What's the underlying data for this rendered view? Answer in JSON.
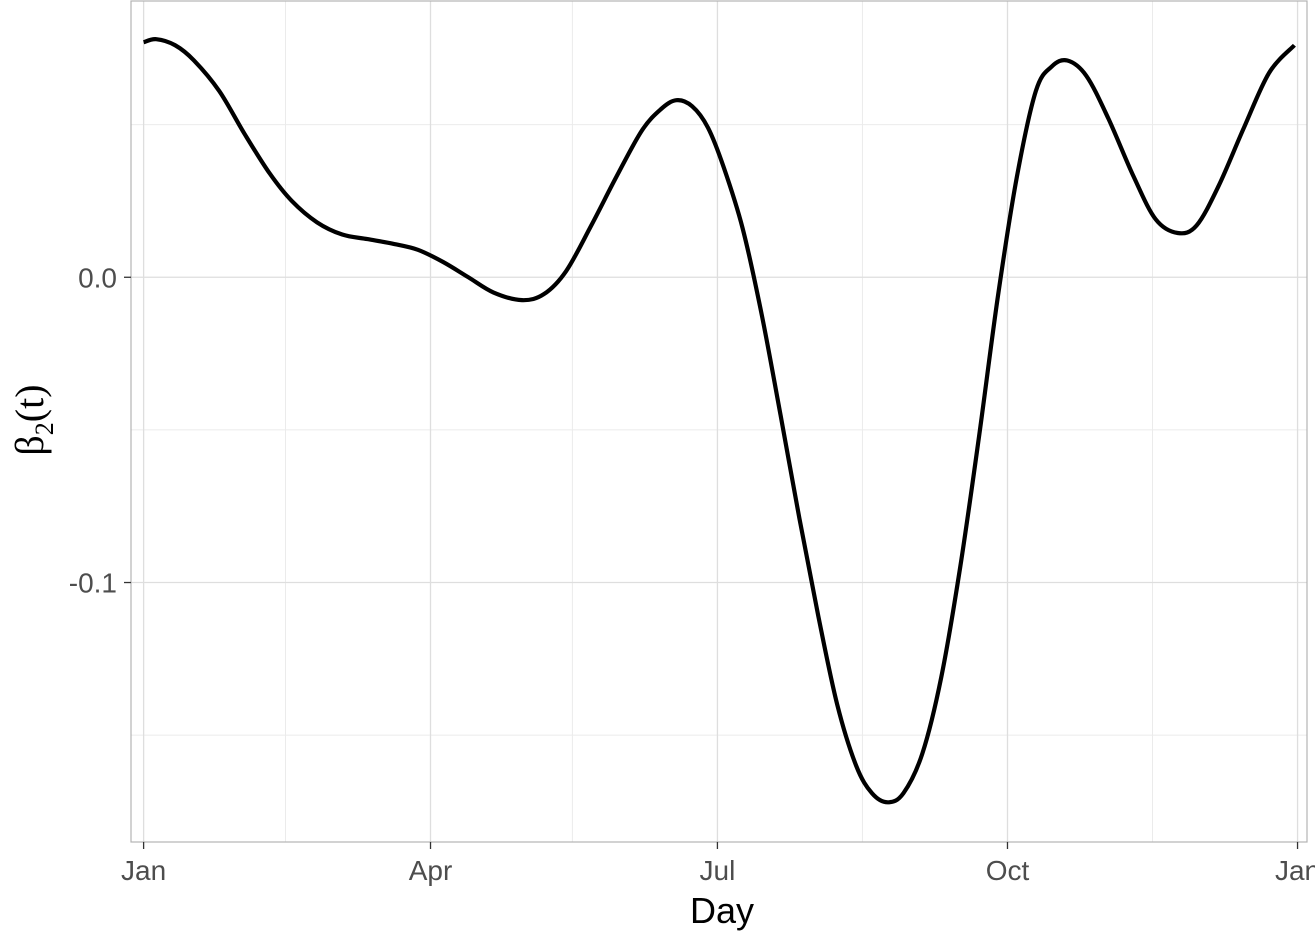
{
  "chart_data": {
    "type": "line",
    "xlabel": "Day",
    "ylabel": {
      "main": "β",
      "subscript": "2",
      "suffix": "(t)"
    },
    "x_domain": [
      "2023-12-28",
      "2025-01-04"
    ],
    "ylim": [
      -0.185,
      0.0905
    ],
    "x_ticks": [
      {
        "date": "2024-01-01",
        "label": "Jan"
      },
      {
        "date": "2024-04-01",
        "label": "Apr"
      },
      {
        "date": "2024-07-01",
        "label": "Jul"
      },
      {
        "date": "2024-10-01",
        "label": "Oct"
      },
      {
        "date": "2025-01-01",
        "label": "Jan"
      }
    ],
    "x_minor_gridlines": [
      "2024-02-15",
      "2024-05-16",
      "2024-08-16",
      "2024-11-16"
    ],
    "y_ticks": [
      {
        "value": 0.0,
        "label": "0.0"
      },
      {
        "value": -0.1,
        "label": "-0.1"
      }
    ],
    "y_minor_gridlines": [
      0.05,
      -0.05,
      -0.15
    ],
    "grid": true,
    "series": [
      {
        "color": "#000000",
        "points": [
          {
            "x": "2024-01-01",
            "y": 0.077
          },
          {
            "x": "2024-01-05",
            "y": 0.078
          },
          {
            "x": "2024-01-11",
            "y": 0.076
          },
          {
            "x": "2024-01-17",
            "y": 0.071
          },
          {
            "x": "2024-01-25",
            "y": 0.061
          },
          {
            "x": "2024-02-02",
            "y": 0.047
          },
          {
            "x": "2024-02-10",
            "y": 0.034
          },
          {
            "x": "2024-02-17",
            "y": 0.025
          },
          {
            "x": "2024-02-25",
            "y": 0.018
          },
          {
            "x": "2024-03-04",
            "y": 0.014
          },
          {
            "x": "2024-03-12",
            "y": 0.0125
          },
          {
            "x": "2024-03-20",
            "y": 0.011
          },
          {
            "x": "2024-03-28",
            "y": 0.009
          },
          {
            "x": "2024-04-05",
            "y": 0.005
          },
          {
            "x": "2024-04-13",
            "y": 0.0
          },
          {
            "x": "2024-04-21",
            "y": -0.005
          },
          {
            "x": "2024-04-30",
            "y": -0.0075
          },
          {
            "x": "2024-05-07",
            "y": -0.0055
          },
          {
            "x": "2024-05-14",
            "y": 0.002
          },
          {
            "x": "2024-05-22",
            "y": 0.017
          },
          {
            "x": "2024-05-30",
            "y": 0.033
          },
          {
            "x": "2024-06-07",
            "y": 0.048
          },
          {
            "x": "2024-06-13",
            "y": 0.055
          },
          {
            "x": "2024-06-18",
            "y": 0.058
          },
          {
            "x": "2024-06-23",
            "y": 0.056
          },
          {
            "x": "2024-06-28",
            "y": 0.049
          },
          {
            "x": "2024-07-03",
            "y": 0.036
          },
          {
            "x": "2024-07-09",
            "y": 0.016
          },
          {
            "x": "2024-07-15",
            "y": -0.012
          },
          {
            "x": "2024-07-21",
            "y": -0.045
          },
          {
            "x": "2024-07-27",
            "y": -0.079
          },
          {
            "x": "2024-08-02",
            "y": -0.111
          },
          {
            "x": "2024-08-08",
            "y": -0.14
          },
          {
            "x": "2024-08-14",
            "y": -0.16
          },
          {
            "x": "2024-08-19",
            "y": -0.169
          },
          {
            "x": "2024-08-24",
            "y": -0.172
          },
          {
            "x": "2024-08-29",
            "y": -0.169
          },
          {
            "x": "2024-09-04",
            "y": -0.156
          },
          {
            "x": "2024-09-10",
            "y": -0.131
          },
          {
            "x": "2024-09-16",
            "y": -0.095
          },
          {
            "x": "2024-09-22",
            "y": -0.052
          },
          {
            "x": "2024-09-28",
            "y": -0.006
          },
          {
            "x": "2024-10-04",
            "y": 0.033
          },
          {
            "x": "2024-10-10",
            "y": 0.061
          },
          {
            "x": "2024-10-15",
            "y": 0.069
          },
          {
            "x": "2024-10-20",
            "y": 0.071
          },
          {
            "x": "2024-10-26",
            "y": 0.066
          },
          {
            "x": "2024-11-02",
            "y": 0.052
          },
          {
            "x": "2024-11-10",
            "y": 0.033
          },
          {
            "x": "2024-11-17",
            "y": 0.019
          },
          {
            "x": "2024-11-24",
            "y": 0.0145
          },
          {
            "x": "2024-11-30",
            "y": 0.017
          },
          {
            "x": "2024-12-07",
            "y": 0.03
          },
          {
            "x": "2024-12-15",
            "y": 0.049
          },
          {
            "x": "2024-12-23",
            "y": 0.067
          },
          {
            "x": "2024-12-31",
            "y": 0.076
          }
        ]
      }
    ]
  }
}
